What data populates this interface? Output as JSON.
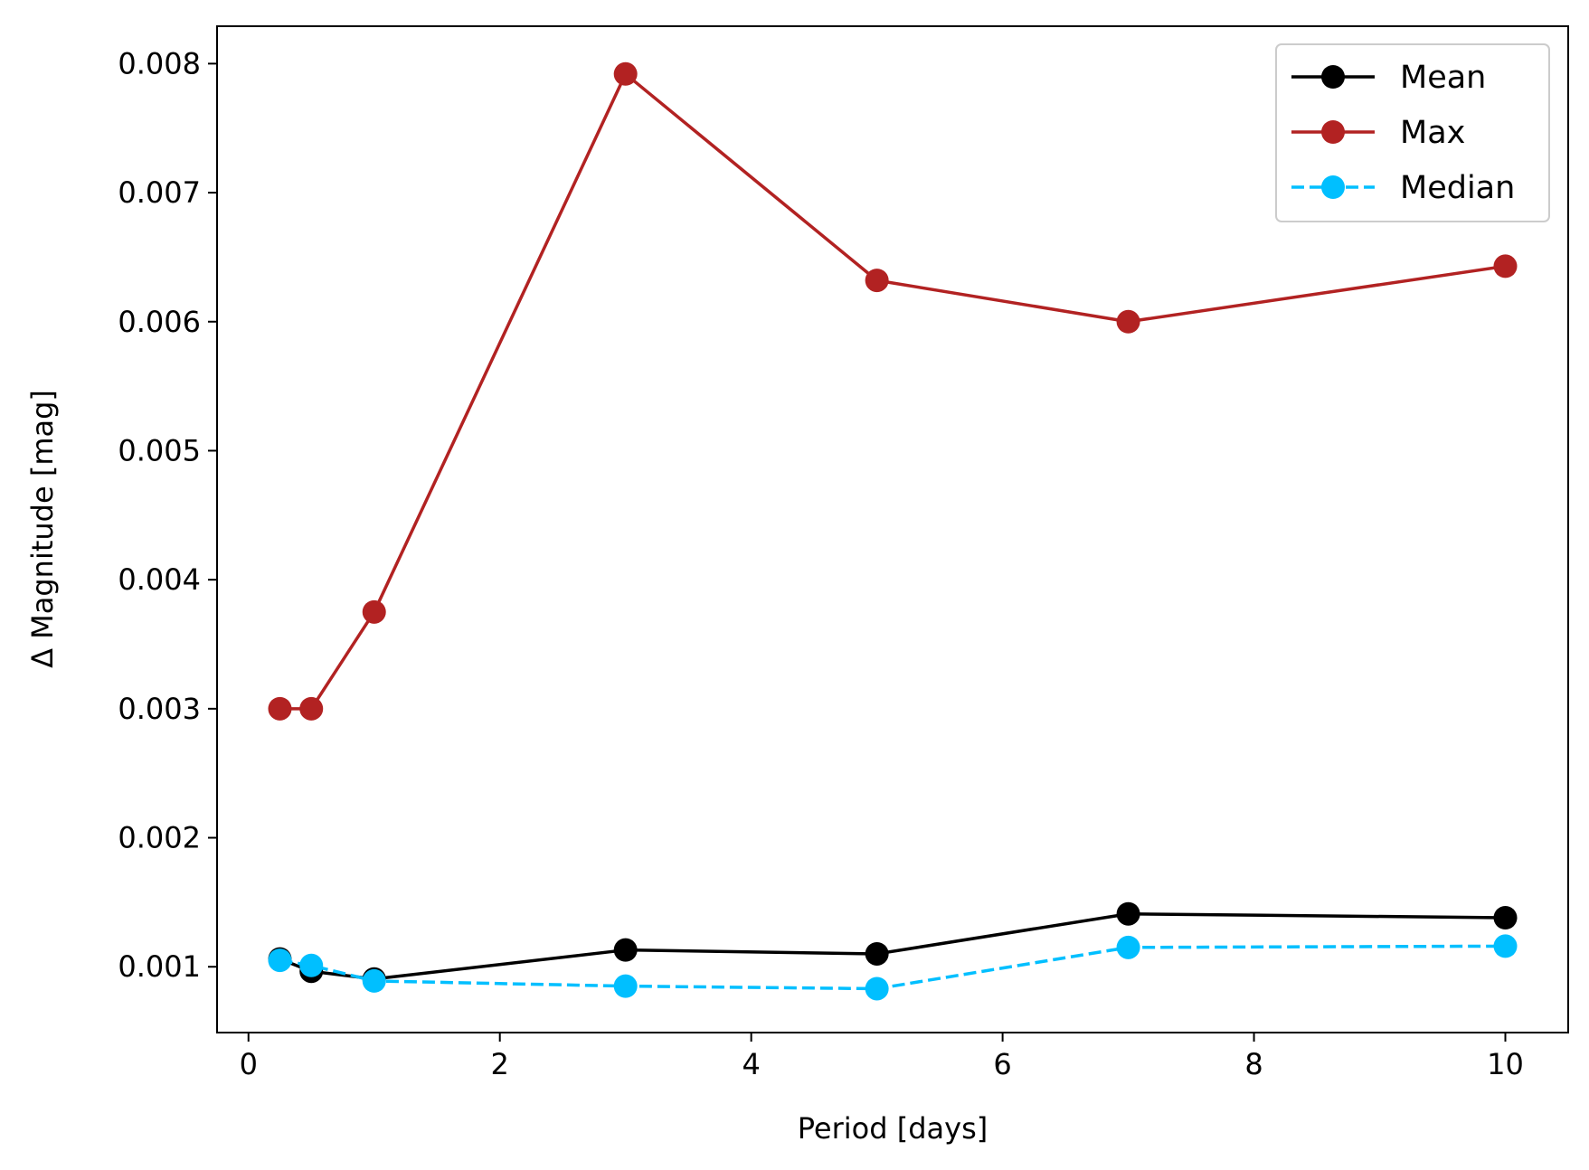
{
  "chart_data": {
    "type": "line",
    "title": "",
    "xlabel": "Period [days]",
    "ylabel": "Δ Magnitude [mag]",
    "xlim": [
      -0.25,
      10.5
    ],
    "ylim": [
      0.00049,
      0.00829
    ],
    "xticks": [
      0,
      2,
      4,
      6,
      8,
      10
    ],
    "xtick_labels": [
      "0",
      "2",
      "4",
      "6",
      "8",
      "10"
    ],
    "yticks": [
      0.001,
      0.002,
      0.003,
      0.004,
      0.005,
      0.006,
      0.007,
      0.008
    ],
    "ytick_labels": [
      "0.001",
      "0.002",
      "0.003",
      "0.004",
      "0.005",
      "0.006",
      "0.007",
      "0.008"
    ],
    "grid": false,
    "legend_position": "top-right",
    "x": [
      0.25,
      0.5,
      1,
      3,
      5,
      7,
      10
    ],
    "series": [
      {
        "name": "Mean",
        "color": "#000000",
        "dash": "solid",
        "values": [
          0.00106,
          0.000965,
          0.000905,
          0.00113,
          0.0011,
          0.00141,
          0.00138
        ]
      },
      {
        "name": "Max",
        "color": "#b22222",
        "dash": "solid",
        "values": [
          0.003,
          0.003,
          0.00375,
          0.00792,
          0.00632,
          0.006,
          0.00643
        ]
      },
      {
        "name": "Median",
        "color": "#00bfff",
        "dash": "dashed",
        "values": [
          0.00105,
          0.00101,
          0.00089,
          0.00085,
          0.00083,
          0.00115,
          0.00116
        ]
      }
    ]
  }
}
